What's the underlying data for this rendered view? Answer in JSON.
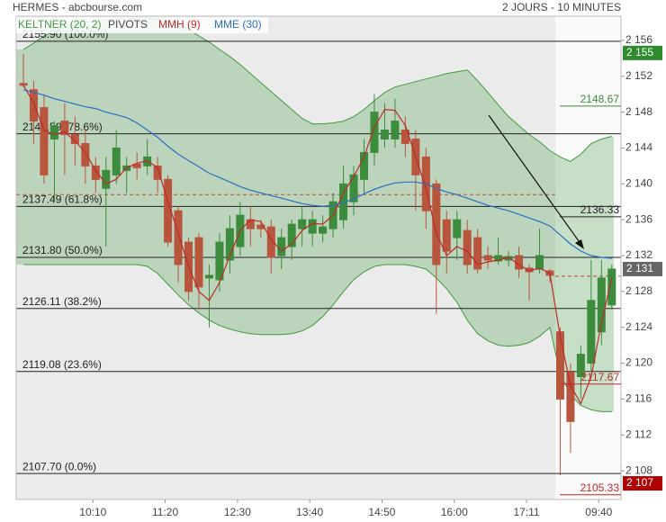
{
  "chart_data": {
    "type": "candlestick",
    "title": "HERMES - abcbourse.com",
    "subtitle": "2 JOURS - 10 MINUTES",
    "categories": [
      null,
      null,
      null,
      null,
      null,
      null,
      null,
      "10:10",
      null,
      null,
      null,
      null,
      null,
      null,
      "11:20",
      null,
      null,
      null,
      null,
      null,
      null,
      "12:30",
      null,
      null,
      null,
      null,
      null,
      null,
      "13:40",
      null,
      null,
      null,
      null,
      null,
      null,
      "14:50",
      null,
      null,
      null,
      null,
      null,
      null,
      "16:00",
      null,
      null,
      null,
      null,
      null,
      null,
      "17:11",
      null,
      null,
      null,
      null,
      null,
      null,
      "09:40",
      null
    ],
    "open": [
      2151.2,
      2150.5,
      2148.5,
      2145,
      2147,
      2145.5,
      2144.5,
      2142,
      2139.5,
      2141,
      2141.5,
      2142.2,
      2142,
      2142,
      2140.5,
      2137,
      2133.5,
      2134,
      2129.5,
      2129.3,
      2131.5,
      2133,
      2136,
      2135.4,
      2135.2,
      2132,
      2133,
      2135,
      2134.5,
      2134.5,
      2135,
      2136,
      2138,
      2140.5,
      2143.5,
      2145,
      2145,
      2146,
      2145,
      2143,
      2140,
      2136,
      2134,
      2134.8,
      2134,
      2132,
      2131.4,
      2131.5,
      2132,
      2130.6,
      2130.5,
      2130.3,
      2123.5,
      2119,
      2118.5,
      2120,
      2123.5,
      2126.5
    ],
    "high": [
      2154.5,
      2151.5,
      2150,
      2147,
      2149,
      2147.5,
      2146,
      2143,
      2143,
      2146,
      2143,
      2143.5,
      2145,
      2143,
      2141,
      2137.5,
      2134,
      2134.5,
      2131,
      2134.5,
      2136.5,
      2138,
      2137.5,
      2136,
      2136,
      2135,
      2136,
      2137.5,
      2137,
      2136.5,
      2139,
      2142,
      2142,
      2145,
      2150,
      2149,
      2149.5,
      2147.5,
      2146,
      2144,
      2140.5,
      2137,
      2137,
      2136,
      2135,
      2133,
      2134,
      2132.5,
      2133,
      2131,
      2135,
      2130.5,
      2124,
      2120,
      2122,
      2131.5,
      2131.5,
      2131
    ],
    "low": [
      2150.8,
      2144.5,
      2140,
      2138,
      2141,
      2142,
      2140,
      2139,
      2133,
      2140,
      2139,
      2140.5,
      2141,
      2139,
      2133,
      2129,
      2127,
      2126,
      2124,
      2128,
      2130,
      2132,
      2133,
      2134,
      2130,
      2130.5,
      2131.5,
      2133,
      2133,
      2133.5,
      2134,
      2135,
      2136.5,
      2139,
      2142,
      2144,
      2144,
      2143,
      2137,
      2135,
      2125.5,
      2130,
      2131.5,
      2130,
      2130,
      2130.5,
      2131,
      2130.8,
      2129.5,
      2127,
      2130,
      2129,
      2107.5,
      2110,
      2116,
      2119,
      2122,
      2126
    ],
    "close": [
      2151,
      2147,
      2141,
      2146.5,
      2145.5,
      2144.5,
      2142,
      2140.5,
      2141.5,
      2144,
      2142,
      2141.8,
      2143,
      2140.5,
      2133.5,
      2131,
      2128,
      2128.5,
      2129.8,
      2133.5,
      2135,
      2136.5,
      2135,
      2135,
      2131.8,
      2134,
      2135.5,
      2136,
      2136,
      2135.2,
      2138,
      2140,
      2141,
      2143.5,
      2148,
      2146,
      2147,
      2144.5,
      2141,
      2137,
      2131,
      2132.5,
      2136,
      2131,
      2130.5,
      2131.5,
      2132,
      2131.9,
      2130.5,
      2130.2,
      2132,
      2129.8,
      2116,
      2113.5,
      2121,
      2127,
      2129.5,
      2130.5
    ],
    "up_color": "#3d8b3d",
    "down_color": "#b8553d",
    "keltner": {
      "name": "KELTNER (20, 2)",
      "color": "#3f9a3f",
      "upper": [
        2155,
        2155.7,
        2156.5,
        2157,
        2157.5,
        2157.8,
        2158,
        2158.2,
        2158.3,
        2158.4,
        2158.4,
        2158.5,
        2158.5,
        2158.4,
        2158.2,
        2157.8,
        2157.2,
        2156.5,
        2155.8,
        2155,
        2154.2,
        2153.3,
        2152.3,
        2151.3,
        2150.3,
        2149.3,
        2148.3,
        2147.3,
        2146.7,
        2146.7,
        2146.8,
        2147,
        2147.5,
        2148.3,
        2149.3,
        2150.2,
        2150.8,
        2151.1,
        2151.4,
        2151.7,
        2152,
        2152.3,
        2152.5,
        2152.7,
        2151.5,
        2150.2,
        2148.8,
        2147.5,
        2146.5,
        2145.5,
        2144.7,
        2143.7,
        2143,
        2142.5,
        2143.3,
        2144.5,
        2145,
        2145.3
      ],
      "lower": [
        2131,
        2131,
        2131,
        2131,
        2131,
        2131,
        2131,
        2131,
        2131,
        2131,
        2131,
        2131,
        2130.8,
        2130,
        2128.8,
        2127.6,
        2126.5,
        2125.6,
        2124.8,
        2124.2,
        2123.8,
        2123.5,
        2123.3,
        2123.2,
        2123.2,
        2123.2,
        2123.3,
        2123.6,
        2124.2,
        2125.2,
        2126.5,
        2128,
        2129.3,
        2130.2,
        2130.8,
        2131,
        2131,
        2131,
        2130.8,
        2130.5,
        2129.5,
        2128.3,
        2126.8,
        2124.8,
        2123.3,
        2122.5,
        2122,
        2121.9,
        2122,
        2122.3,
        2123,
        2124,
        2118.8,
        2116.5,
        2115.3,
        2114.8,
        2114.6,
        2114.6
      ]
    },
    "series": [
      {
        "name": "MMH (9)",
        "color": "#c0282a",
        "values": [
          2151,
          2149,
          2146,
          2145.5,
          2145.8,
          2144.8,
          2143.5,
          2141.5,
          2140,
          2140.5,
          2141.8,
          2142.3,
          2142.6,
          2141.8,
          2138,
          2134.5,
          2130.8,
          2128,
          2127,
          2129,
          2132,
          2134.8,
          2136,
          2135.8,
          2133.8,
          2132.5,
          2133.3,
          2134.8,
          2135.6,
          2135.5,
          2136.5,
          2139,
          2140.8,
          2143,
          2146.3,
          2148.3,
          2148.2,
          2146.5,
          2143,
          2139.5,
          2134.5,
          2132,
          2133,
          2132.5,
          2131,
          2131.3,
          2131.5,
          2131.8,
          2131,
          2130.3,
          2130.6,
          2130,
          2123,
          2117.5,
          2115.5,
          2118.5,
          2124.5,
          2129.5
        ]
      },
      {
        "name": "MME (30)",
        "color": "#2a6fc4",
        "values": [
          2150.5,
          2150.2,
          2149.9,
          2149.5,
          2149.2,
          2148.9,
          2148.6,
          2148.4,
          2148,
          2147.7,
          2147.4,
          2146.8,
          2146,
          2145.2,
          2144.2,
          2143.3,
          2142.6,
          2141.9,
          2141.2,
          2140.7,
          2140.2,
          2139.7,
          2139.3,
          2139,
          2138.7,
          2138.4,
          2138.1,
          2137.8,
          2137.6,
          2137.5,
          2137.6,
          2137.9,
          2138.3,
          2138.9,
          2139.4,
          2139.8,
          2140.1,
          2140.2,
          2140.2,
          2140,
          2139.5,
          2139.1,
          2138.8,
          2138.4,
          2138,
          2137.6,
          2137.3,
          2137,
          2136.6,
          2136.2,
          2135.8,
          2135.3,
          2134.3,
          2133.3,
          2132.5,
          2132,
          2131.8,
          2131.7
        ]
      }
    ],
    "pivots": {
      "name": "PIVOTS",
      "color": "#222222",
      "levels": [
        {
          "value": 2155.9,
          "label": "2155.90  (100.0%)"
        },
        {
          "value": 2145.59,
          "label": "2145.59  (78.6%)"
        },
        {
          "value": 2137.49,
          "label": "2137.49  (61.8%)"
        },
        {
          "value": 2131.8,
          "label": "2131.80  (50.0%)"
        },
        {
          "value": 2126.11,
          "label": "2126.11  (38.2%)"
        },
        {
          "value": 2119.08,
          "label": "2119.08  (23.6%)"
        },
        {
          "value": 2107.7,
          "label": "2107.70  (0.0%)"
        }
      ]
    },
    "reference_lines": [
      2138.8,
      2129.7
    ],
    "price_labels": [
      {
        "value": 2148.67,
        "color": "#3d8b3d"
      },
      {
        "value": 2136.33,
        "color": "#222222"
      },
      {
        "value": 2117.67,
        "color": "#c0282a"
      },
      {
        "value": 2105.33,
        "color": "#c0282a"
      }
    ],
    "axis_markers": [
      {
        "value": 2154.6,
        "label": "2 155",
        "color": "#2e8b2e"
      },
      {
        "value": 2130.5,
        "label": "2 131",
        "color": "#666666"
      },
      {
        "value": 2106.6,
        "label": "2 107",
        "color": "#b00000"
      }
    ],
    "ylim": [
      2104.8,
      2158.7
    ],
    "yticks": [
      {
        "value": 2108,
        "label": "2 108"
      },
      {
        "value": 2112,
        "label": "2 112"
      },
      {
        "value": 2116,
        "label": "2 116"
      },
      {
        "value": 2120,
        "label": "2 120"
      },
      {
        "value": 2124,
        "label": "2 124"
      },
      {
        "value": 2128,
        "label": "2 128"
      },
      {
        "value": 2132,
        "label": "2 132"
      },
      {
        "value": 2136,
        "label": "2 136"
      },
      {
        "value": 2140,
        "label": "2 140"
      },
      {
        "value": 2144,
        "label": "2 144"
      },
      {
        "value": 2148,
        "label": "2 148"
      },
      {
        "value": 2152,
        "label": "2 152"
      },
      {
        "value": 2156,
        "label": "2 156"
      }
    ]
  }
}
